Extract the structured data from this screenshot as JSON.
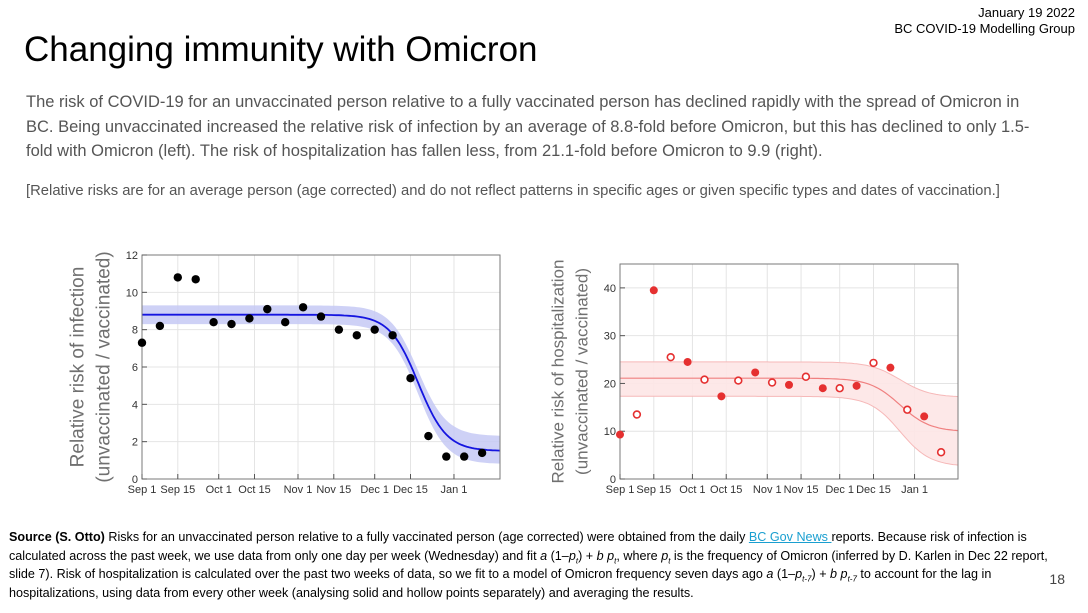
{
  "header": {
    "date": "January 19 2022",
    "group": "BC COVID-19 Modelling Group"
  },
  "title": "Changing immunity with Omicron",
  "intro": "The risk of COVID-19 for an unvaccinated person relative to a fully vaccinated person has declined rapidly with the spread of Omicron in BC. Being unvaccinated increased the relative risk of infection by an average of 8.8-fold before Omicron, but this has declined to only 1.5-fold with Omicron (left). The risk of hospitalization has fallen less, from 21.1-fold before Omicron to 9.9 (right).",
  "note": "[Relative risks are for an average person (age corrected) and do not reflect patterns in specific ages or given specific types and dates of vaccination.]",
  "source": {
    "label": "Source (S. Otto)",
    "text_before_link": " Risks for an unvaccinated person relative to a fully vaccinated person (age corrected) were obtained from the daily ",
    "link": "BC Gov News ",
    "text_after_link": "reports. Because risk of infection is calculated across the past week, we use data from only one day per week (Wednesday) and fit ",
    "formula1_a": "a",
    "formula1_mid": " (1–",
    "formula1_p": "p",
    "formula1_sub": "t",
    "formula1_close": ") + ",
    "formula1_b": "b",
    "formula1_p2": " p",
    "formula1_sub2": "t",
    "text_where": ", where ",
    "where_p": "p",
    "where_sub": "t",
    "text_is_freq": " is the frequency of Omicron (inferred by D. Karlen in Dec 22 report, slide 7).  Risk of hospitalization is calculated over the past two weeks of data, so we fit to a model of Omicron frequency seven days ago ",
    "formula2_a": "a",
    "formula2_mid": " (1–",
    "formula2_p": "p",
    "formula2_sub": "t-7",
    "formula2_close": ") + ",
    "formula2_b": "b",
    "formula2_p2": " p",
    "formula2_sub2": "t-7",
    "text_end": " to account for the lag in hospitalizations, using data from every other week (analysing solid and hollow points separately) and averaging the results."
  },
  "page_number": "18",
  "chart_data": [
    {
      "type": "scatter",
      "ylabel_line1": "Relative risk of infection",
      "ylabel_line2": "(unvaccinated / vaccinated)",
      "xlabel": "",
      "x_ticks": [
        {
          "x": 0,
          "label": "Sep 1"
        },
        {
          "x": 14,
          "label": "Sep 15"
        },
        {
          "x": 30,
          "label": "Oct 1"
        },
        {
          "x": 44,
          "label": "Oct 15"
        },
        {
          "x": 61,
          "label": "Nov 1"
        },
        {
          "x": 75,
          "label": "Nov 15"
        },
        {
          "x": 91,
          "label": "Dec 1"
        },
        {
          "x": 105,
          "label": "Dec 15"
        },
        {
          "x": 122,
          "label": "Jan 1"
        }
      ],
      "y_ticks": [
        0,
        2,
        4,
        6,
        8,
        10,
        12
      ],
      "xlim": [
        0,
        140
      ],
      "ylim": [
        0,
        12
      ],
      "grid": true,
      "colors": {
        "points": "#000000",
        "fit": "#1515e0",
        "band": "#c5c9f5"
      },
      "points": [
        {
          "x": 0,
          "y": 7.3,
          "hollow": false
        },
        {
          "x": 7,
          "y": 8.2,
          "hollow": false
        },
        {
          "x": 14,
          "y": 10.8,
          "hollow": false
        },
        {
          "x": 21,
          "y": 10.7,
          "hollow": false
        },
        {
          "x": 28,
          "y": 8.4,
          "hollow": false
        },
        {
          "x": 35,
          "y": 8.3,
          "hollow": false
        },
        {
          "x": 42,
          "y": 8.6,
          "hollow": false
        },
        {
          "x": 49,
          "y": 9.1,
          "hollow": false
        },
        {
          "x": 56,
          "y": 8.4,
          "hollow": false
        },
        {
          "x": 63,
          "y": 9.2,
          "hollow": false
        },
        {
          "x": 70,
          "y": 8.7,
          "hollow": false
        },
        {
          "x": 77,
          "y": 8.0,
          "hollow": false
        },
        {
          "x": 84,
          "y": 7.7,
          "hollow": false
        },
        {
          "x": 91,
          "y": 8.0,
          "hollow": false
        },
        {
          "x": 98,
          "y": 7.7,
          "hollow": false
        },
        {
          "x": 105,
          "y": 5.4,
          "hollow": false
        },
        {
          "x": 112,
          "y": 2.3,
          "hollow": false
        },
        {
          "x": 119,
          "y": 1.2,
          "hollow": false
        },
        {
          "x": 126,
          "y": 1.2,
          "hollow": false
        },
        {
          "x": 133,
          "y": 1.4,
          "hollow": false
        }
      ],
      "fit": {
        "before": 8.8,
        "after": 1.5,
        "band_before": [
          8.3,
          9.3
        ],
        "band_after": [
          0.8,
          2.3
        ],
        "midpoint": 108,
        "rate": 0.18
      }
    },
    {
      "type": "scatter",
      "ylabel_line1": "Relative risk of hospitalization",
      "ylabel_line2": "(unvaccinated / vaccinated)",
      "xlabel": "",
      "x_ticks": [
        {
          "x": 0,
          "label": "Sep 1"
        },
        {
          "x": 14,
          "label": "Sep 15"
        },
        {
          "x": 30,
          "label": "Oct 1"
        },
        {
          "x": 44,
          "label": "Oct 15"
        },
        {
          "x": 61,
          "label": "Nov 1"
        },
        {
          "x": 75,
          "label": "Nov 15"
        },
        {
          "x": 91,
          "label": "Dec 1"
        },
        {
          "x": 105,
          "label": "Dec 15"
        },
        {
          "x": 122,
          "label": "Jan 1"
        }
      ],
      "y_ticks": [
        0,
        10,
        20,
        30,
        40
      ],
      "xlim": [
        0,
        140
      ],
      "ylim": [
        0,
        45
      ],
      "grid": true,
      "colors": {
        "points": "#e53030",
        "fit": "#f08080",
        "band": "#fde6e6"
      },
      "points": [
        {
          "x": 0,
          "y": 9.3,
          "hollow": false
        },
        {
          "x": 7,
          "y": 13.5,
          "hollow": true
        },
        {
          "x": 14,
          "y": 39.5,
          "hollow": false
        },
        {
          "x": 21,
          "y": 25.5,
          "hollow": true
        },
        {
          "x": 28,
          "y": 24.5,
          "hollow": false
        },
        {
          "x": 35,
          "y": 20.8,
          "hollow": true
        },
        {
          "x": 42,
          "y": 17.3,
          "hollow": false
        },
        {
          "x": 49,
          "y": 20.6,
          "hollow": true
        },
        {
          "x": 56,
          "y": 22.3,
          "hollow": false
        },
        {
          "x": 63,
          "y": 20.2,
          "hollow": true
        },
        {
          "x": 70,
          "y": 19.7,
          "hollow": false
        },
        {
          "x": 77,
          "y": 21.4,
          "hollow": true
        },
        {
          "x": 84,
          "y": 19.0,
          "hollow": false
        },
        {
          "x": 91,
          "y": 19.0,
          "hollow": true
        },
        {
          "x": 98,
          "y": 19.5,
          "hollow": false
        },
        {
          "x": 105,
          "y": 24.3,
          "hollow": true
        },
        {
          "x": 112,
          "y": 23.3,
          "hollow": false
        },
        {
          "x": 119,
          "y": 14.5,
          "hollow": true
        },
        {
          "x": 126,
          "y": 13.1,
          "hollow": false
        },
        {
          "x": 133,
          "y": 5.6,
          "hollow": true
        }
      ],
      "fit": {
        "before": 21.1,
        "after": 9.9,
        "band_before": [
          17.3,
          24.5
        ],
        "band_after": [
          2.6,
          17.1
        ],
        "midpoint": 116,
        "rate": 0.16
      }
    }
  ]
}
